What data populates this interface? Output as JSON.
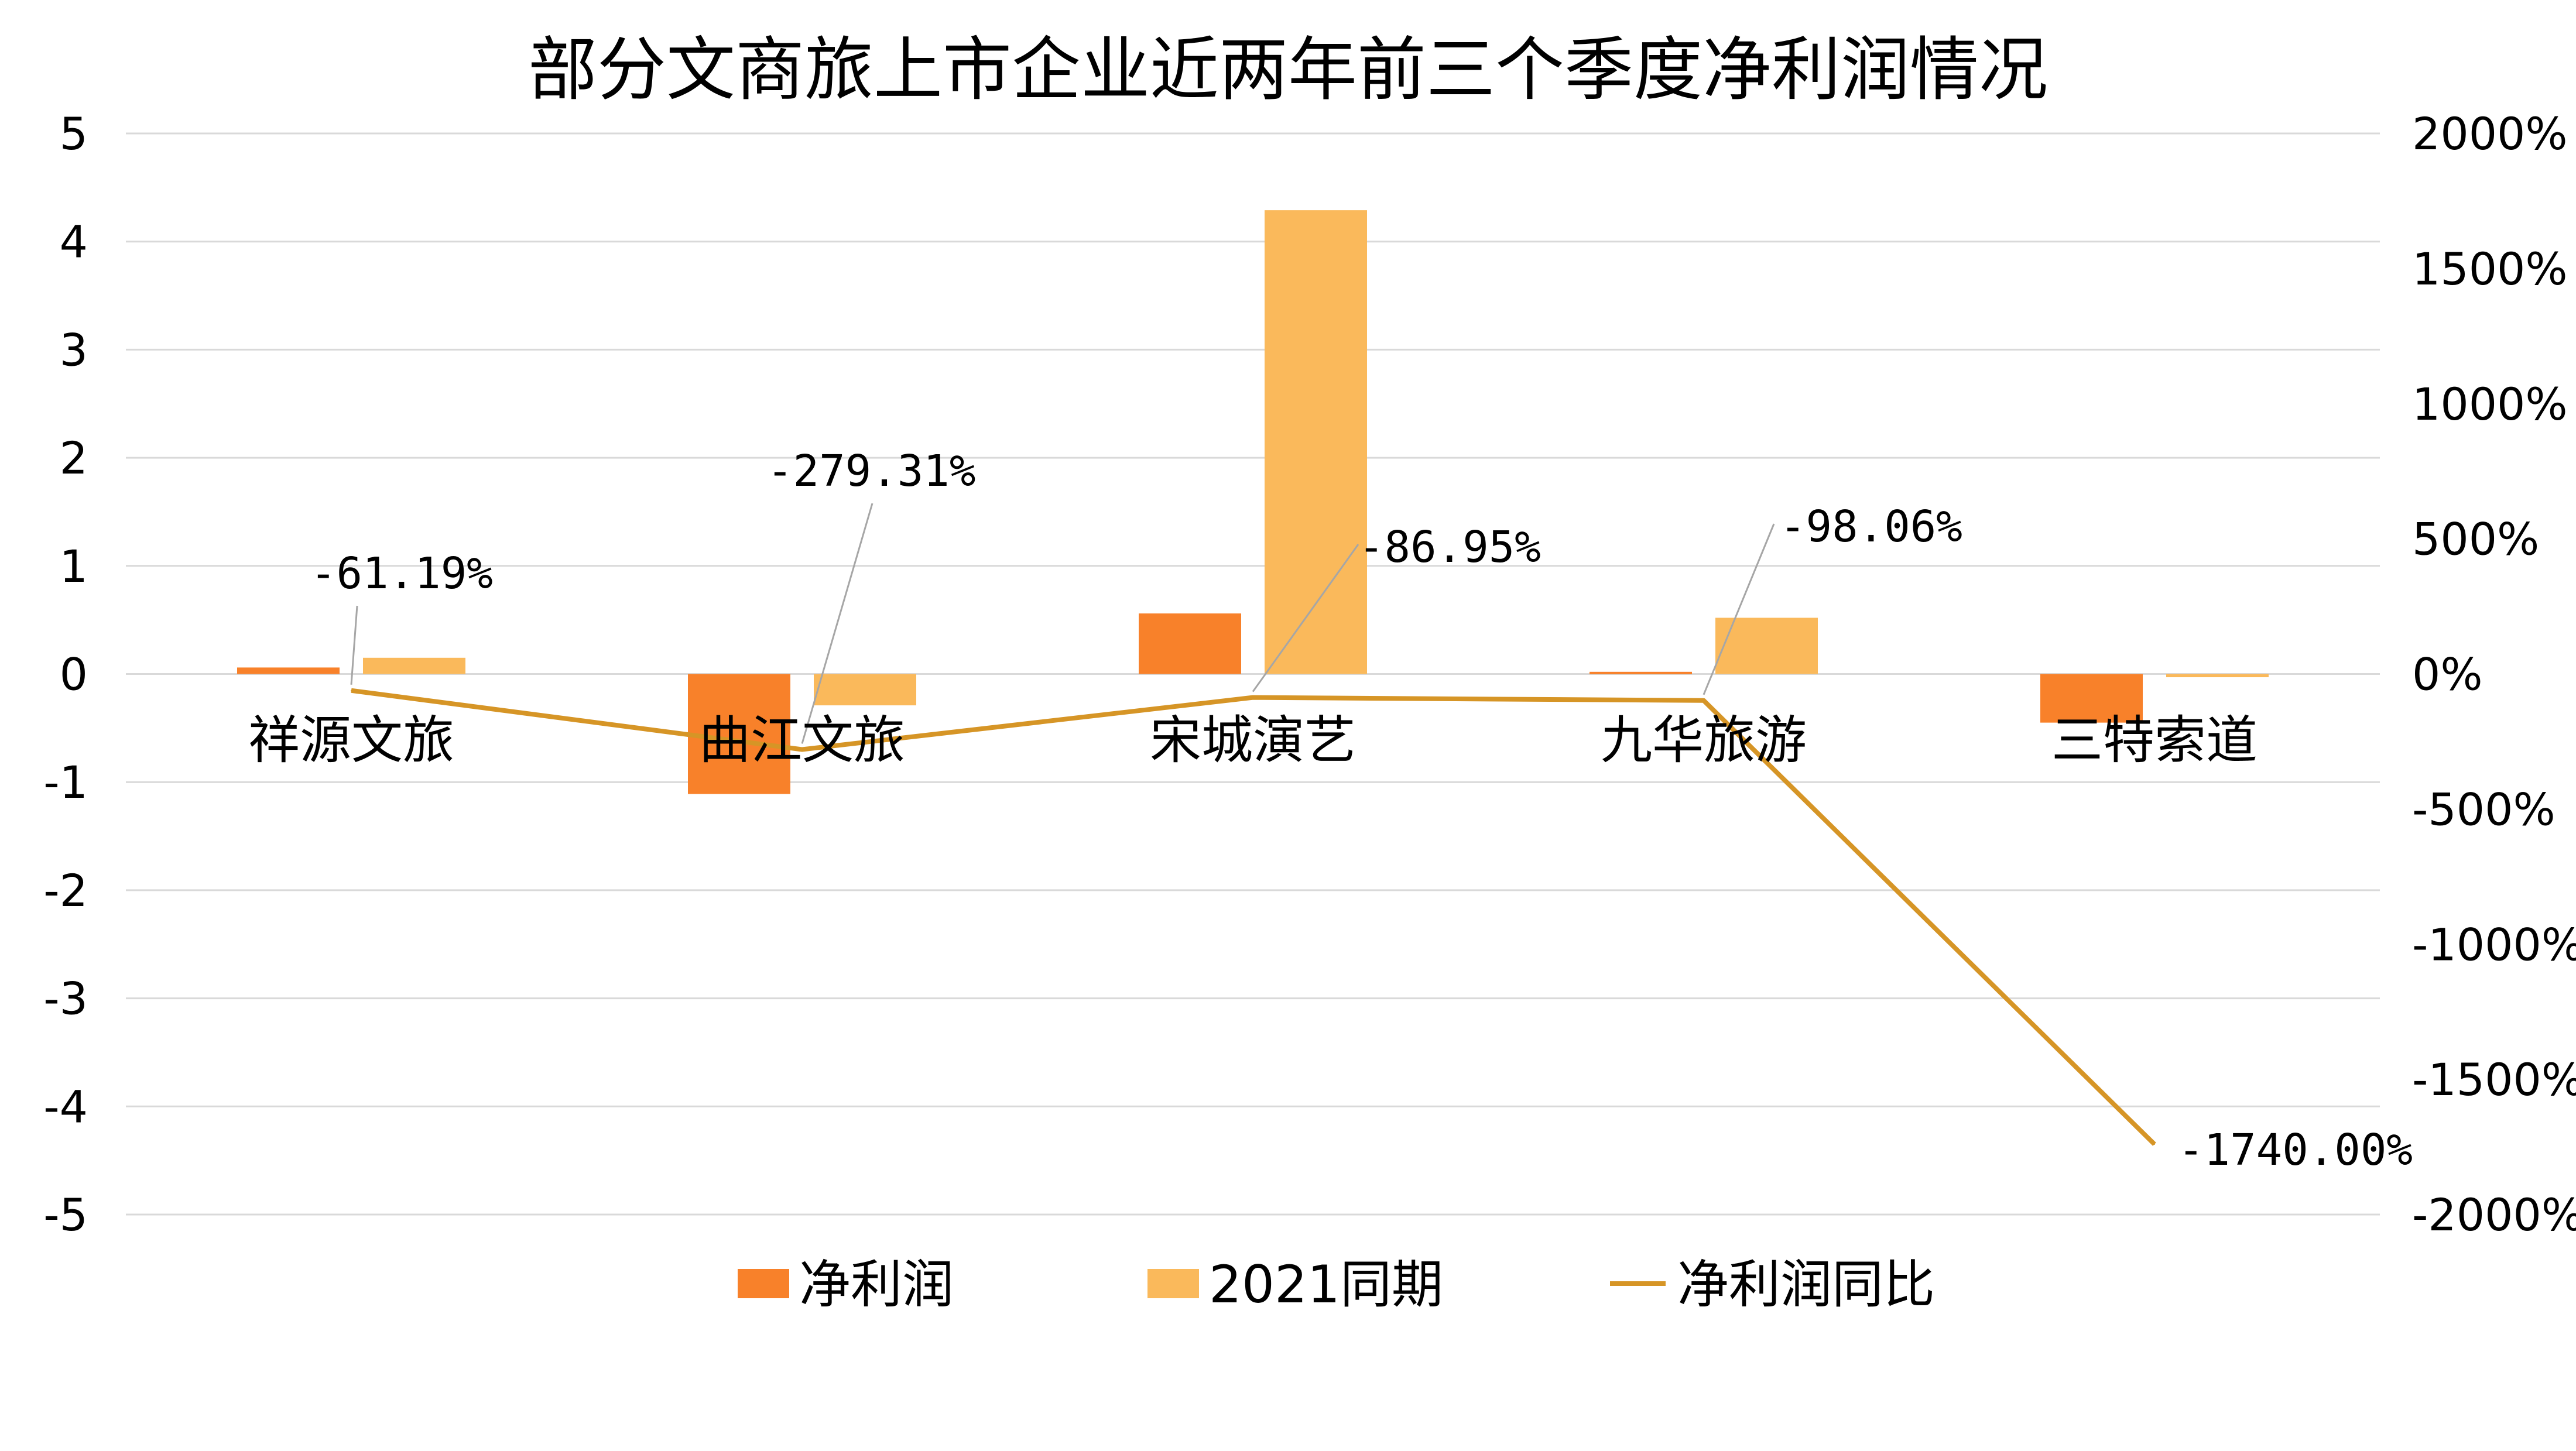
{
  "chart_data": {
    "type": "bar",
    "title": "部分文商旅上市企业近两年前三个季度净利润情况",
    "categories": [
      "祥源文旅",
      "曲江文旅",
      "宋城演艺",
      "九华旅游",
      "三特索道"
    ],
    "series": [
      {
        "name": "净利润",
        "kind": "bar",
        "axis": "left",
        "color": "#F8812A",
        "values": [
          0.06,
          -1.11,
          0.56,
          0.02,
          -0.45
        ]
      },
      {
        "name": "2021同期",
        "kind": "bar",
        "axis": "left",
        "color": "#FAB95B",
        "values": [
          0.15,
          -0.29,
          4.29,
          0.52,
          -0.03
        ]
      },
      {
        "name": "净利润同比",
        "kind": "line",
        "axis": "right",
        "color": "#D69526",
        "values": [
          -61.19,
          -279.31,
          -86.95,
          -98.06,
          -1740.0
        ],
        "labels": [
          "-61.19%",
          "-279.31%",
          "-86.95%",
          "-98.06%",
          "-1740.00%"
        ]
      }
    ],
    "y_left": {
      "min": -5,
      "max": 5,
      "step": 1,
      "ticks": [
        "5",
        "4",
        "3",
        "2",
        "1",
        "0",
        "-1",
        "-2",
        "-3",
        "-4",
        "-5"
      ]
    },
    "y_right": {
      "min": -2000,
      "max": 2000,
      "step": 500,
      "ticks": [
        "2000%",
        "1500%",
        "1000%",
        "500%",
        "0%",
        "-500%",
        "-1000%",
        "-1500%",
        "-2000%"
      ]
    },
    "grid": true,
    "legend_position": "bottom-center",
    "legend": [
      "净利润",
      "2021同期",
      "净利润同比"
    ]
  }
}
